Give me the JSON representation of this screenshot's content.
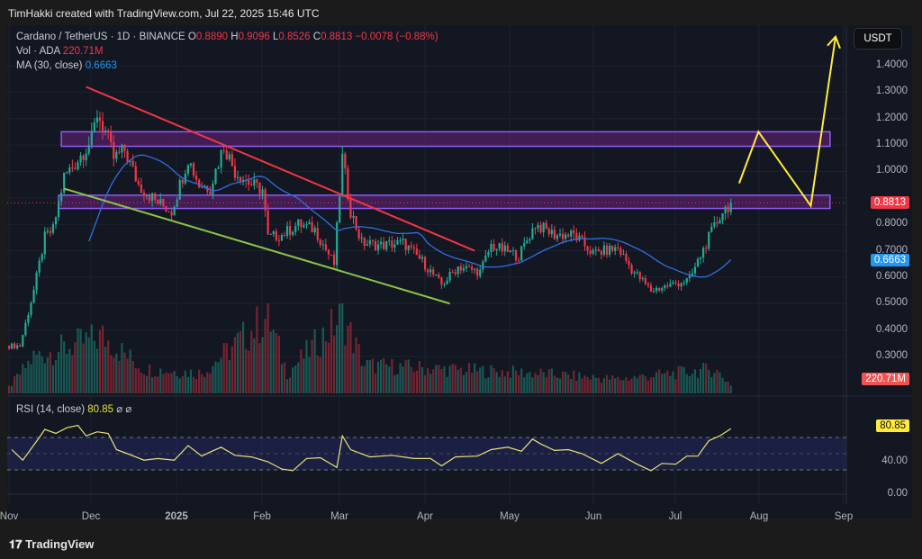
{
  "credit": "TimHakki created with TradingView.com, Jul 22, 2025 15:46 UTC",
  "legend": {
    "symbol": "Cardano / TetherUS · 1D · BINANCE",
    "o_label": "O",
    "o": "0.8890",
    "h_label": "H",
    "h": "0.9096",
    "l_label": "L",
    "l": "0.8526",
    "c_label": "C",
    "c": "0.8813",
    "change": "−0.0078 (−0.88%)",
    "vol_label": "Vol · ADA",
    "vol": "220.71M",
    "ma_label": "MA (30, close)",
    "ma": "0.6663",
    "rsi_label": "RSI (14, close)",
    "rsi": "80.85",
    "rsi_icons": "⌀ ⌀"
  },
  "currency_button": "USDT",
  "brand": "TradingView",
  "colors": {
    "up": "#22ab94",
    "down": "#f23645",
    "ma": "#2962ff",
    "rsi": "#e8e37a",
    "zone": "#9c27b0",
    "trend_red": "#f23645",
    "trend_green": "#8bc34a",
    "projection": "#ffeb3b"
  },
  "chart_data": [
    {
      "type": "candlestick",
      "title": "Cardano / TetherUS · 1D · BINANCE",
      "ylim": [
        0.3,
        1.4
      ],
      "y_ticks": [
        "1.4000",
        "1.3000",
        "1.2000",
        "1.1000",
        "1.0000",
        "0.8000",
        "0.7000",
        "0.6000",
        "0.5000",
        "0.4000",
        "0.3000"
      ],
      "x_ticks": [
        "Nov",
        "Dec",
        "2025",
        "Feb",
        "Mar",
        "Apr",
        "May",
        "Jun",
        "Jul",
        "Aug",
        "Sep"
      ],
      "price_path": [
        [
          "2024-11-01",
          0.34
        ],
        [
          "2024-11-05",
          0.34
        ],
        [
          "2024-11-10",
          0.55
        ],
        [
          "2024-11-14",
          0.75
        ],
        [
          "2024-11-17",
          0.78
        ],
        [
          "2024-11-21",
          0.98
        ],
        [
          "2024-11-25",
          1.03
        ],
        [
          "2024-12-01",
          1.12
        ],
        [
          "2024-12-03",
          1.22
        ],
        [
          "2024-12-06",
          1.15
        ],
        [
          "2024-12-09",
          1.05
        ],
        [
          "2024-12-13",
          1.08
        ],
        [
          "2024-12-18",
          0.95
        ],
        [
          "2024-12-24",
          0.89
        ],
        [
          "2024-12-30",
          0.85
        ],
        [
          "2025-01-05",
          1.05
        ],
        [
          "2025-01-09",
          0.95
        ],
        [
          "2025-01-13",
          0.94
        ],
        [
          "2025-01-18",
          1.1
        ],
        [
          "2025-01-22",
          1.0
        ],
        [
          "2025-01-28",
          0.95
        ],
        [
          "2025-02-01",
          0.93
        ],
        [
          "2025-02-03",
          0.75
        ],
        [
          "2025-02-08",
          0.76
        ],
        [
          "2025-02-14",
          0.8
        ],
        [
          "2025-02-20",
          0.78
        ],
        [
          "2025-02-27",
          0.65
        ],
        [
          "2025-03-02",
          1.05
        ],
        [
          "2025-03-05",
          0.85
        ],
        [
          "2025-03-09",
          0.73
        ],
        [
          "2025-03-16",
          0.72
        ],
        [
          "2025-03-24",
          0.73
        ],
        [
          "2025-03-31",
          0.66
        ],
        [
          "2025-04-07",
          0.57
        ],
        [
          "2025-04-13",
          0.64
        ],
        [
          "2025-04-21",
          0.62
        ],
        [
          "2025-04-25",
          0.72
        ],
        [
          "2025-05-05",
          0.68
        ],
        [
          "2025-05-11",
          0.8
        ],
        [
          "2025-05-18",
          0.76
        ],
        [
          "2025-05-25",
          0.76
        ],
        [
          "2025-06-01",
          0.69
        ],
        [
          "2025-06-10",
          0.71
        ],
        [
          "2025-06-15",
          0.63
        ],
        [
          "2025-06-22",
          0.55
        ],
        [
          "2025-06-29",
          0.57
        ],
        [
          "2025-07-06",
          0.59
        ],
        [
          "2025-07-13",
          0.75
        ],
        [
          "2025-07-18",
          0.85
        ],
        [
          "2025-07-21",
          0.8813
        ]
      ],
      "last_price": "0.8813",
      "ma_value": "0.6663",
      "zones": [
        {
          "from": "2024-11-20",
          "to": "2025-08-26",
          "low": 1.095,
          "high": 1.15
        },
        {
          "from": "2024-11-19",
          "to": "2025-08-26",
          "low": 0.86,
          "high": 0.91
        }
      ],
      "trendlines": [
        {
          "color": "trend_red",
          "points": [
            [
              "2024-11-29",
              1.32
            ],
            [
              "2025-04-19",
              0.7
            ]
          ]
        },
        {
          "color": "trend_green",
          "points": [
            [
              "2024-11-21",
              0.935
            ],
            [
              "2025-04-10",
              0.5
            ]
          ]
        }
      ],
      "projection": [
        [
          "2025-07-24",
          0.955
        ],
        [
          "2025-07-31",
          1.15
        ],
        [
          "2025-08-19",
          0.87
        ],
        [
          "2025-08-28",
          1.51
        ]
      ]
    },
    {
      "type": "bar",
      "title": "Vol · ADA",
      "last": "220.71M",
      "volume_path_m": [
        [
          "2024-11-01",
          150
        ],
        [
          "2024-11-10",
          900
        ],
        [
          "2024-11-25",
          1200
        ],
        [
          "2024-12-05",
          1400
        ],
        [
          "2024-12-20",
          600
        ],
        [
          "2025-01-10",
          500
        ],
        [
          "2025-02-03",
          1900
        ],
        [
          "2025-02-10",
          500
        ],
        [
          "2025-03-02",
          1900
        ],
        [
          "2025-03-10",
          700
        ],
        [
          "2025-04-07",
          600
        ],
        [
          "2025-05-10",
          500
        ],
        [
          "2025-06-10",
          350
        ],
        [
          "2025-07-15",
          600
        ],
        [
          "2025-07-21",
          220.71
        ]
      ]
    },
    {
      "type": "line",
      "title": "RSI (14, close)",
      "ylim": [
        0,
        100
      ],
      "levels": [
        70,
        50,
        30
      ],
      "y_ticks": [
        "40.00",
        "0.00"
      ],
      "last": "80.85",
      "values": [
        [
          "2024-11-02",
          55
        ],
        [
          "2024-11-06",
          42
        ],
        [
          "2024-11-12",
          70
        ],
        [
          "2024-11-14",
          80
        ],
        [
          "2024-11-18",
          75
        ],
        [
          "2024-11-22",
          82
        ],
        [
          "2024-11-26",
          85
        ],
        [
          "2024-11-29",
          72
        ],
        [
          "2024-12-03",
          77
        ],
        [
          "2024-12-07",
          75
        ],
        [
          "2024-12-10",
          55
        ],
        [
          "2024-12-14",
          50
        ],
        [
          "2024-12-20",
          42
        ],
        [
          "2024-12-25",
          44
        ],
        [
          "2024-12-31",
          42
        ],
        [
          "2025-01-05",
          60
        ],
        [
          "2025-01-10",
          47
        ],
        [
          "2025-01-13",
          52
        ],
        [
          "2025-01-17",
          58
        ],
        [
          "2025-01-22",
          48
        ],
        [
          "2025-01-28",
          46
        ],
        [
          "2025-02-03",
          40
        ],
        [
          "2025-02-08",
          31
        ],
        [
          "2025-02-12",
          29
        ],
        [
          "2025-02-17",
          44
        ],
        [
          "2025-02-22",
          45
        ],
        [
          "2025-02-28",
          33
        ],
        [
          "2025-03-02",
          72
        ],
        [
          "2025-03-05",
          55
        ],
        [
          "2025-03-12",
          46
        ],
        [
          "2025-03-20",
          48
        ],
        [
          "2025-03-28",
          44
        ],
        [
          "2025-04-03",
          44
        ],
        [
          "2025-04-07",
          35
        ],
        [
          "2025-04-12",
          46
        ],
        [
          "2025-04-20",
          47
        ],
        [
          "2025-04-25",
          55
        ],
        [
          "2025-05-01",
          58
        ],
        [
          "2025-05-06",
          53
        ],
        [
          "2025-05-10",
          68
        ],
        [
          "2025-05-13",
          62
        ],
        [
          "2025-05-18",
          54
        ],
        [
          "2025-05-23",
          55
        ],
        [
          "2025-05-28",
          50
        ],
        [
          "2025-06-04",
          38
        ],
        [
          "2025-06-10",
          50
        ],
        [
          "2025-06-17",
          37
        ],
        [
          "2025-06-22",
          29
        ],
        [
          "2025-06-26",
          38
        ],
        [
          "2025-07-01",
          37
        ],
        [
          "2025-07-05",
          47
        ],
        [
          "2025-07-09",
          47
        ],
        [
          "2025-07-13",
          66
        ],
        [
          "2025-07-17",
          72
        ],
        [
          "2025-07-21",
          80.85
        ]
      ]
    }
  ]
}
